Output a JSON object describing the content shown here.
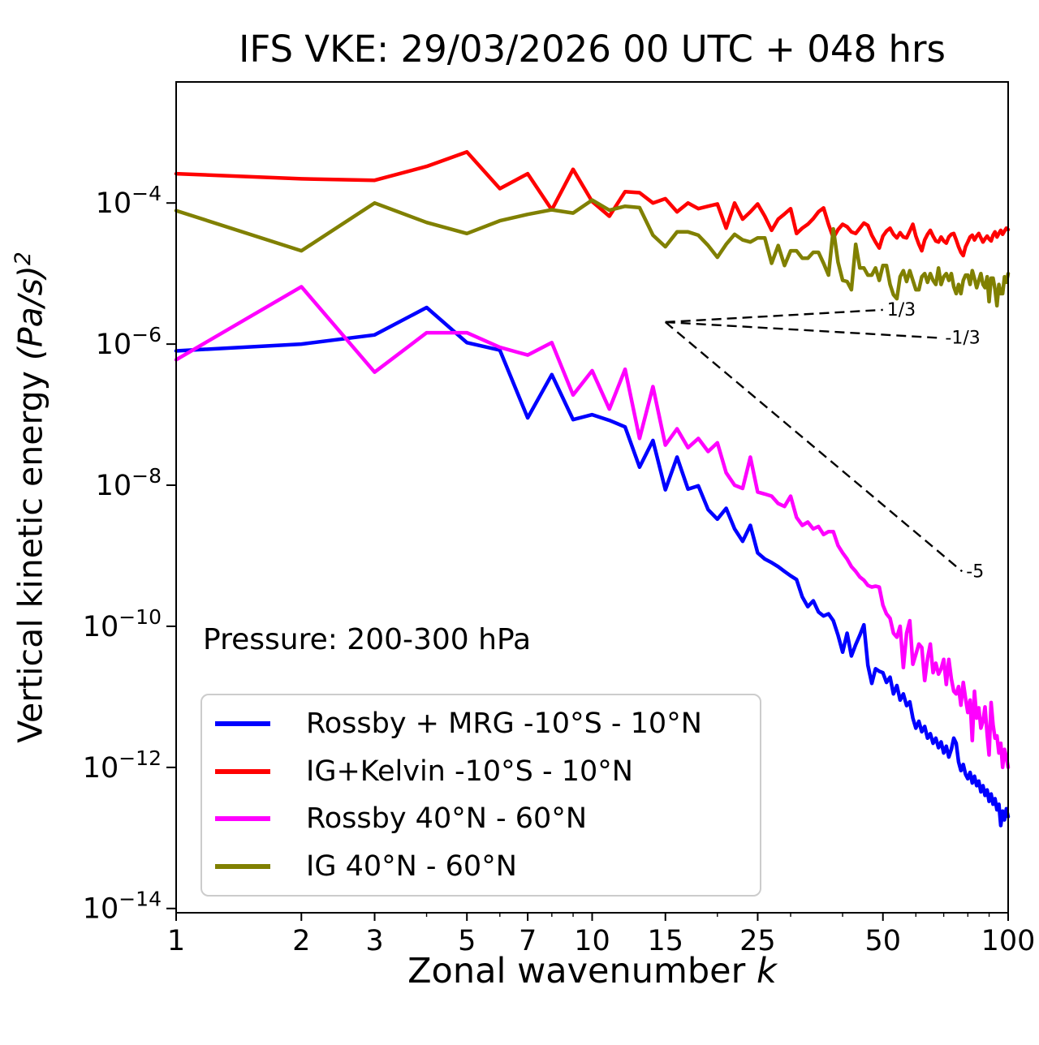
{
  "title": "IFS VKE: 29/03/2026 00 UTC + 048 hrs",
  "annotation": "Pressure: 200-300 hPa",
  "x_axis": {
    "label": "Zonal wavenumber",
    "label_var": "k",
    "scale": "log",
    "lim": [
      1,
      100
    ],
    "ticks_major": [
      1,
      2,
      3,
      5,
      7,
      10,
      15,
      25,
      50,
      100
    ],
    "tick_labels": [
      "1",
      "2",
      "3",
      "5",
      "7",
      "10",
      "15",
      "25",
      "50",
      "100"
    ],
    "ticks_minor": [
      4,
      6,
      8,
      9,
      20,
      30,
      40,
      60,
      70,
      80,
      90
    ]
  },
  "y_axis": {
    "label": "Vertical kinetic energy",
    "unit": "(Pa/s)",
    "unit_sup": "2",
    "scale": "log",
    "lim": [
      8.7e-15,
      0.0052
    ],
    "tick_exponents": [
      -4,
      -6,
      -8,
      -10,
      -12,
      -14
    ],
    "tick_base": "10"
  },
  "chart_data": {
    "type": "line",
    "log_x": true,
    "log_y": true,
    "grid": false,
    "legend_position": "lower left",
    "k_start": 1,
    "k_step": 1,
    "series": [
      {
        "name": "Rossby + MRG -10°S - 10°N",
        "color": "#0000ff",
        "values": [
          8e-07,
          1e-06,
          1.35e-06,
          3.3e-06,
          1.05e-06,
          8.2e-07,
          9e-08,
          3.7e-07,
          8.5e-08,
          1e-07,
          8.3e-08,
          6.7e-08,
          1.8e-08,
          4.3e-08,
          8.6e-09,
          2.5e-08,
          8.8e-09,
          9.8e-09,
          4.5e-09,
          3.3e-09,
          4.7e-09,
          2.4e-09,
          1.6e-09,
          2.7e-09,
          1.1e-09,
          9e-10,
          8e-10,
          7e-10,
          6e-10,
          5.2e-10,
          4.6e-10,
          2.6e-10,
          1.9e-10,
          2.3e-10,
          1.6e-10,
          1.4e-10,
          1.5e-10,
          1.2e-10,
          7.5e-11,
          4.3e-11,
          8e-11,
          3.8e-11,
          5.5e-11,
          7.5e-11,
          1.05e-10,
          2.8e-11,
          1.55e-11,
          2.5e-11,
          2.3e-11,
          2.2e-11,
          1.6e-11,
          1.9e-11,
          1.1e-11,
          1.45e-11,
          9e-12,
          1.1e-11,
          7.5e-12,
          8.5e-12,
          5e-12,
          3.6e-12,
          4.5e-12,
          3.2e-12,
          3.8e-12,
          2.6e-12,
          3e-12,
          2.2e-12,
          2.6e-12,
          1.9e-12,
          2.3e-12,
          1.6e-12,
          2e-12,
          1.4e-12,
          1.8e-12,
          2.6e-12,
          2.2e-12,
          1.2e-12,
          9e-13,
          1.1e-12,
          8e-13,
          6.9e-13,
          8.5e-13,
          6e-13,
          7.5e-13,
          5.5e-13,
          6.4e-13,
          4.5e-13,
          5.5e-13,
          4e-13,
          4.8e-13,
          3.3e-13,
          4.2e-13,
          3e-13,
          3.6e-13,
          2.5e-13,
          3e-13,
          1.5e-13,
          2.4e-13,
          1.8e-13,
          2.6e-13,
          2e-13
        ]
      },
      {
        "name": "IG+Kelvin -10°S - 10°N",
        "color": "#ff0000",
        "values": [
          0.00026,
          0.00022,
          0.00021,
          0.00033,
          0.00053,
          0.00016,
          0.00026,
          8e-05,
          0.0003,
          0.000105,
          6.5e-05,
          0.000145,
          0.00014,
          0.0001,
          0.000115,
          7.5e-05,
          0.0001,
          8.3e-05,
          9e-05,
          9.7e-05,
          4.4e-05,
          0.0001,
          5.9e-05,
          7.5e-05,
          9.7e-05,
          6.5e-05,
          4.1e-05,
          5.9e-05,
          7e-05,
          8.3e-05,
          3.7e-05,
          4.4e-05,
          5e-05,
          6e-05,
          7.5e-05,
          8.5e-05,
          5e-05,
          3.2e-05,
          4.2e-05,
          5e-05,
          4.6e-05,
          3.9e-05,
          3.7e-05,
          4.4e-05,
          5.2e-05,
          4.8e-05,
          3.5e-05,
          2.8e-05,
          2.3e-05,
          3.4e-05,
          4e-05,
          4.4e-05,
          3.6e-05,
          3.2e-05,
          3.8e-05,
          3.3e-05,
          3.2e-05,
          4e-05,
          5e-05,
          3.4e-05,
          2.6e-05,
          2.1e-05,
          3e-05,
          3.6e-05,
          4.1e-05,
          3.4e-05,
          2.9e-05,
          2.8e-05,
          3.3e-05,
          2.9e-05,
          2.7e-05,
          3.3e-05,
          3.6e-05,
          3.7e-05,
          3e-05,
          2.4e-05,
          2e-05,
          1.8e-05,
          2.4e-05,
          2.8e-05,
          3.3e-05,
          3.5e-05,
          3e-05,
          3.4e-05,
          3.7e-05,
          3.2e-05,
          2.8e-05,
          3.1e-05,
          3.4e-05,
          3.1e-05,
          2.9e-05,
          3.5e-05,
          3.9e-05,
          3.3e-05,
          3.7e-05,
          4.1e-05,
          3.6e-05,
          4e-05,
          4.4e-05,
          4.2e-05
        ]
      },
      {
        "name": "Rossby 40°N - 60°N",
        "color": "#ff00ff",
        "values": [
          6e-07,
          6.5e-06,
          4e-07,
          1.45e-06,
          1.45e-06,
          9e-07,
          7e-07,
          1.05e-06,
          1.9e-07,
          4.2e-07,
          1.2e-07,
          4.4e-07,
          4.6e-08,
          2.5e-07,
          3.7e-08,
          6.3e-08,
          3.4e-08,
          4.6e-08,
          3e-08,
          4e-08,
          1.5e-08,
          1e-08,
          9e-09,
          2.5e-08,
          8e-09,
          7.5e-09,
          7e-09,
          5.5e-09,
          5e-09,
          7e-09,
          3.5e-09,
          2.7e-09,
          3e-09,
          2.4e-09,
          2.6e-09,
          2e-09,
          2.2e-09,
          2.2e-09,
          1.4e-09,
          1.1e-09,
          9e-10,
          7e-10,
          6e-10,
          5e-10,
          4.5e-10,
          3.8e-10,
          3.6e-10,
          3.7e-10,
          3.6e-10,
          2e-10,
          1.5e-10,
          1.3e-10,
          8e-11,
          7e-11,
          1e-10,
          2.6e-11,
          8e-11,
          1.2e-10,
          2.9e-11,
          4e-11,
          5.6e-11,
          5e-11,
          1.7e-11,
          3.5e-11,
          5.6e-11,
          2.2e-11,
          3e-11,
          2.1e-11,
          2.5e-11,
          3.4e-11,
          1.5e-11,
          3.4e-11,
          1.8e-11,
          1.2e-11,
          1.1e-11,
          1.4e-11,
          7.6e-12,
          1.6e-11,
          9.5e-12,
          6e-12,
          9e-12,
          2.4e-12,
          1.2e-11,
          5e-12,
          7e-12,
          3.6e-12,
          4.5e-12,
          7.2e-12,
          3e-12,
          1.5e-12,
          8.3e-12,
          4e-12,
          2.6e-12,
          2.8e-12,
          1.6e-12,
          2.2e-12,
          1e-12,
          1.8e-12,
          1.4e-12,
          1e-12
        ]
      },
      {
        "name": "IG 40°N - 60°N",
        "color": "#808000",
        "values": [
          7.8e-05,
          2.1e-05,
          0.0001,
          5.3e-05,
          3.7e-05,
          5.6e-05,
          6.9e-05,
          8e-05,
          7.2e-05,
          0.00011,
          7.9e-05,
          9e-05,
          8.6e-05,
          3.5e-05,
          2.4e-05,
          3.9e-05,
          3.9e-05,
          3.5e-05,
          2.5e-05,
          1.7e-05,
          2.6e-05,
          3.6e-05,
          3e-05,
          2.8e-05,
          3.2e-05,
          3.2e-05,
          1.4e-05,
          2.5e-05,
          1.3e-05,
          2.1e-05,
          2.1e-05,
          1.65e-05,
          1.65e-05,
          2e-05,
          2e-05,
          1.4e-05,
          9.5e-06,
          4.3e-05,
          1.45e-05,
          8e-06,
          7.7e-06,
          5.9e-06,
          2.6e-05,
          1.2e-05,
          1.2e-05,
          9.5e-06,
          9.5e-06,
          1.2e-05,
          8e-06,
          1.3e-05,
          1.3e-05,
          7e-06,
          5e-06,
          4.4e-06,
          9e-06,
          1.1e-05,
          7.7e-06,
          1.1e-05,
          8e-06,
          5.9e-06,
          5.9e-06,
          9e-06,
          1e-05,
          7.5e-06,
          1e-05,
          8e-06,
          7e-06,
          1.2e-05,
          7e-06,
          9e-06,
          1e-05,
          8e-06,
          1e-05,
          6.5e-06,
          5.2e-06,
          7e-06,
          5.2e-06,
          8e-06,
          9.5e-06,
          9.5e-06,
          7e-06,
          1.1e-05,
          8.5e-06,
          6.3e-06,
          8e-06,
          1e-05,
          7e-06,
          6.3e-06,
          9e-06,
          4e-06,
          8.6e-06,
          8.6e-06,
          6e-06,
          3.5e-06,
          7e-06,
          5.2e-06,
          5.2e-06,
          9e-06,
          7.5e-06,
          1e-05
        ]
      }
    ],
    "reference_lines": [
      {
        "label": "1/3",
        "k": [
          15,
          50
        ],
        "v": [
          2.05e-06,
          3.06e-06
        ]
      },
      {
        "label": "-1/3",
        "k": [
          15,
          69
        ],
        "v": [
          2.05e-06,
          1.22e-06
        ]
      },
      {
        "label": "-5",
        "k": [
          15,
          77.5
        ],
        "v": [
          2.05e-06,
          6e-10
        ]
      }
    ]
  },
  "colors": {
    "axes": "#000000",
    "legend_border": "#cccccc",
    "reference_line": "#000000"
  }
}
